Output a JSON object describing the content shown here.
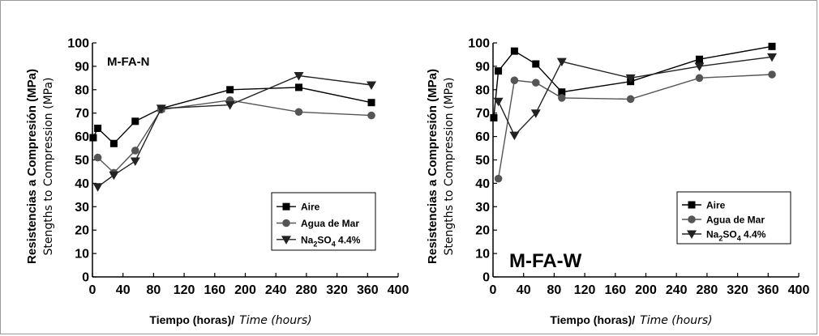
{
  "chart_data": [
    {
      "type": "line",
      "title": "M-FA-N",
      "ylabel_bold": "Resistencias a Compresión (MPa)",
      "ylabel_normal": "Stengths to Compression (MPa)",
      "xlabel_bold": "Tiempo (horas)/",
      "xlabel_italic": "Time (hours)",
      "xlim": [
        0,
        400
      ],
      "ylim": [
        0,
        100
      ],
      "xticks": [
        0,
        40,
        80,
        120,
        160,
        200,
        240,
        280,
        320,
        360,
        400
      ],
      "yticks": [
        0,
        10,
        20,
        30,
        40,
        50,
        60,
        70,
        80,
        90,
        100
      ],
      "legend_position": "bottom-right",
      "series": [
        {
          "name": "Aire",
          "marker": "square",
          "color": "#000000",
          "x": [
            1,
            7,
            28,
            56,
            90,
            180,
            270,
            365
          ],
          "y": [
            59.5,
            63.5,
            57,
            66.5,
            72,
            80,
            81,
            74.5
          ]
        },
        {
          "name": "Agua de Mar",
          "marker": "circle",
          "color": "#555555",
          "x": [
            7,
            28,
            56,
            90,
            180,
            270,
            365
          ],
          "y": [
            51,
            44.5,
            54,
            71.5,
            75.5,
            70.5,
            69
          ]
        },
        {
          "name": "Na2SO4 4.4%",
          "marker": "triangle-down",
          "color": "#222222",
          "x": [
            7,
            28,
            56,
            90,
            180,
            270,
            365
          ],
          "y": [
            38.5,
            43.5,
            49.5,
            72,
            73.5,
            86,
            82
          ]
        }
      ]
    },
    {
      "type": "line",
      "title": "M-FA-W",
      "ylabel_bold": "Resistencias a Compresión (MPa)",
      "ylabel_normal": "Stengths to Compression (MPa)",
      "xlabel_bold": "Tiempo (horas)/",
      "xlabel_italic": "Time (hours)",
      "xlim": [
        0,
        400
      ],
      "ylim": [
        0,
        100
      ],
      "xticks": [
        0,
        40,
        80,
        120,
        160,
        200,
        240,
        280,
        320,
        360,
        400
      ],
      "yticks": [
        0,
        10,
        20,
        30,
        40,
        50,
        60,
        70,
        80,
        90,
        100
      ],
      "legend_position": "bottom-right",
      "series": [
        {
          "name": "Aire",
          "marker": "square",
          "color": "#000000",
          "x": [
            1,
            7,
            28,
            56,
            90,
            180,
            270,
            365
          ],
          "y": [
            68,
            88,
            96.5,
            91,
            79,
            83.5,
            93,
            98.5
          ]
        },
        {
          "name": "Agua de Mar",
          "marker": "circle",
          "color": "#555555",
          "x": [
            7,
            28,
            56,
            90,
            180,
            270,
            365
          ],
          "y": [
            42,
            84,
            83,
            76.5,
            76,
            85,
            86.5
          ]
        },
        {
          "name": "Na2SO4 4.4%",
          "marker": "triangle-down",
          "color": "#222222",
          "x": [
            7,
            28,
            56,
            90,
            180,
            270,
            365
          ],
          "y": [
            75,
            60.5,
            70,
            92,
            85,
            90,
            94
          ]
        }
      ]
    }
  ]
}
